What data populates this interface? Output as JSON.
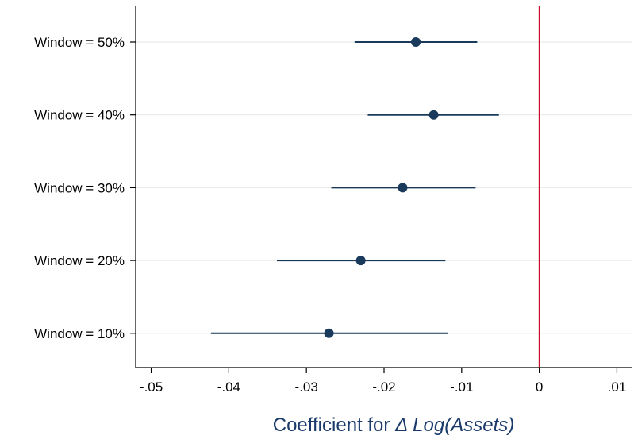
{
  "chart_data": {
    "type": "scatter",
    "subtype": "coefficient-plot",
    "title": "",
    "xlabel_prefix": "Coefficient for ",
    "xlabel_symbol": "Δ",
    "xlabel_italic": "Log(Assets)",
    "ylabel": "",
    "xlim": [
      -0.052,
      0.012
    ],
    "xticks": [
      -0.05,
      -0.04,
      -0.03,
      -0.02,
      -0.01,
      0,
      0.01
    ],
    "xtick_labels": [
      "-.05",
      "-.04",
      "-.03",
      "-.02",
      "-.01",
      "0",
      ".01"
    ],
    "categories": [
      "Window = 50%",
      "Window = 40%",
      "Window = 30%",
      "Window = 20%",
      "Window = 10%"
    ],
    "estimates": [
      -0.0159,
      -0.0136,
      -0.0176,
      -0.023,
      -0.0271
    ],
    "ci_low": [
      -0.0238,
      -0.0221,
      -0.0268,
      -0.0338,
      -0.0423
    ],
    "ci_high": [
      -0.008,
      -0.0052,
      -0.0082,
      -0.0121,
      -0.0118
    ],
    "reference_line_x": 0,
    "grid": "horizontal",
    "legend": "none"
  },
  "colors": {
    "marker": "#1a3a5c",
    "ci_line": "#1a3a5c",
    "reference_line": "#c8102e",
    "grid": "#eaeaea",
    "axis": "#000000",
    "xlabel": "#1a3a6b"
  }
}
